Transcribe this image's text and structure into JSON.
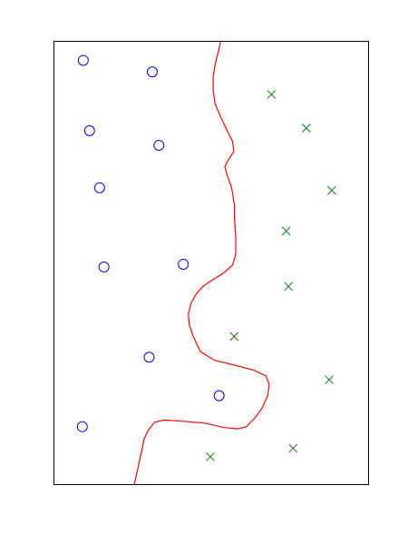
{
  "chart_data": {
    "type": "scatter",
    "title": "",
    "xlabel": "",
    "ylabel": "",
    "grid": false,
    "xlim": [
      0,
      1
    ],
    "ylim": [
      0,
      1
    ],
    "series": [
      {
        "marker": "circle",
        "color": "#0000ff",
        "points": [
          [
            0.092,
            0.958
          ],
          [
            0.312,
            0.932
          ],
          [
            0.112,
            0.799
          ],
          [
            0.333,
            0.766
          ],
          [
            0.144,
            0.67
          ],
          [
            0.158,
            0.491
          ],
          [
            0.411,
            0.497
          ],
          [
            0.302,
            0.287
          ],
          [
            0.525,
            0.2
          ],
          [
            0.089,
            0.13
          ]
        ]
      },
      {
        "marker": "x",
        "color": "#008000",
        "points": [
          [
            0.692,
            0.881
          ],
          [
            0.803,
            0.805
          ],
          [
            0.884,
            0.664
          ],
          [
            0.739,
            0.572
          ],
          [
            0.746,
            0.447
          ],
          [
            0.573,
            0.334
          ],
          [
            0.876,
            0.236
          ],
          [
            0.761,
            0.081
          ],
          [
            0.497,
            0.062
          ]
        ]
      }
    ],
    "boundary": {
      "color": "#ff0000",
      "points": [
        [
          0.53,
          1.0
        ],
        [
          0.522,
          0.976
        ],
        [
          0.512,
          0.948
        ],
        [
          0.506,
          0.92
        ],
        [
          0.506,
          0.89
        ],
        [
          0.512,
          0.86
        ],
        [
          0.53,
          0.83
        ],
        [
          0.55,
          0.8
        ],
        [
          0.568,
          0.775
        ],
        [
          0.572,
          0.752
        ],
        [
          0.558,
          0.737
        ],
        [
          0.543,
          0.718
        ],
        [
          0.55,
          0.7
        ],
        [
          0.565,
          0.67
        ],
        [
          0.574,
          0.63
        ],
        [
          0.574,
          0.6
        ],
        [
          0.578,
          0.56
        ],
        [
          0.578,
          0.52
        ],
        [
          0.568,
          0.495
        ],
        [
          0.535,
          0.475
        ],
        [
          0.5,
          0.46
        ],
        [
          0.473,
          0.447
        ],
        [
          0.452,
          0.43
        ],
        [
          0.436,
          0.41
        ],
        [
          0.427,
          0.385
        ],
        [
          0.43,
          0.36
        ],
        [
          0.442,
          0.335
        ],
        [
          0.465,
          0.3
        ],
        [
          0.51,
          0.28
        ],
        [
          0.58,
          0.268
        ],
        [
          0.635,
          0.258
        ],
        [
          0.674,
          0.245
        ],
        [
          0.685,
          0.225
        ],
        [
          0.68,
          0.2
        ],
        [
          0.662,
          0.172
        ],
        [
          0.64,
          0.15
        ],
        [
          0.612,
          0.13
        ],
        [
          0.585,
          0.125
        ],
        [
          0.54,
          0.128
        ],
        [
          0.48,
          0.138
        ],
        [
          0.41,
          0.142
        ],
        [
          0.35,
          0.145
        ],
        [
          0.32,
          0.14
        ],
        [
          0.3,
          0.123
        ],
        [
          0.285,
          0.1
        ],
        [
          0.28,
          0.08
        ],
        [
          0.272,
          0.055
        ],
        [
          0.263,
          0.025
        ],
        [
          0.255,
          0.0
        ]
      ]
    }
  }
}
